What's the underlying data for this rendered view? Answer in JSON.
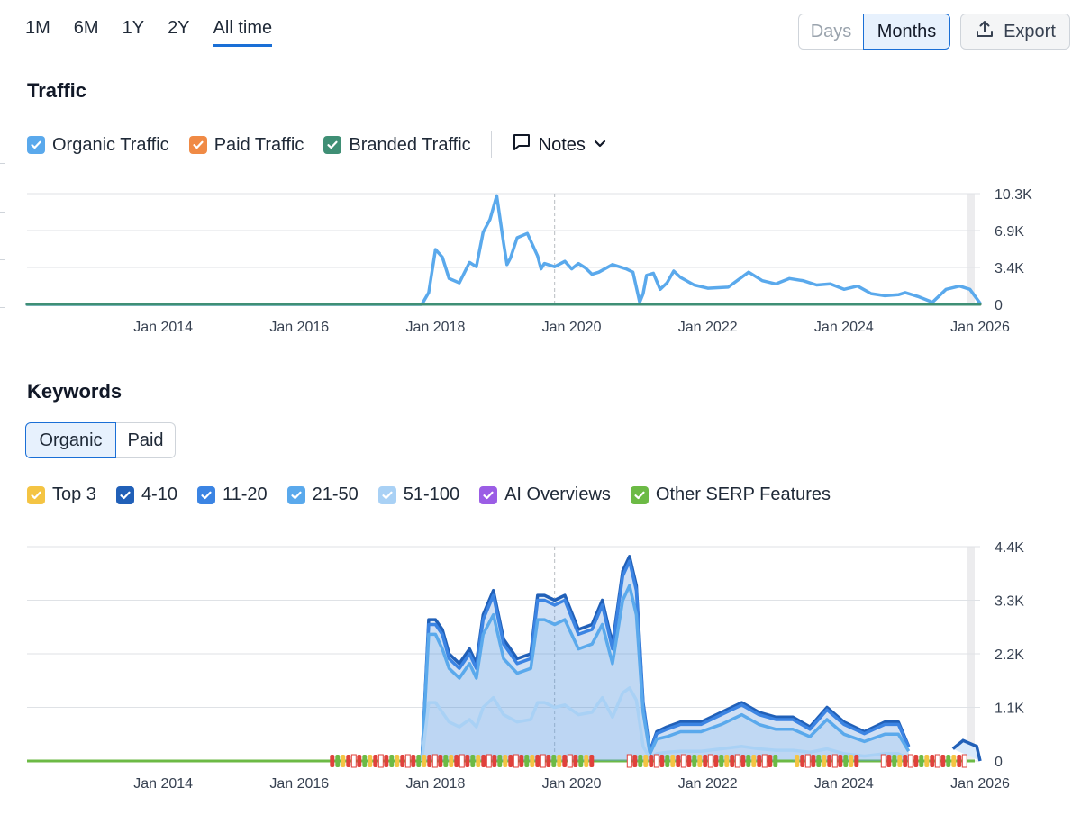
{
  "range_tabs": [
    "1M",
    "6M",
    "1Y",
    "2Y",
    "All time"
  ],
  "period": {
    "days": "Days",
    "months": "Months"
  },
  "export_label": "Export",
  "traffic": {
    "title": "Traffic",
    "legend": [
      {
        "label": "Organic Traffic",
        "color": "#5aa9ec"
      },
      {
        "label": "Paid Traffic",
        "color": "#f08a45"
      },
      {
        "label": "Branded Traffic",
        "color": "#3f8f75"
      }
    ],
    "notes_label": "Notes"
  },
  "keywords": {
    "title": "Keywords",
    "tabs": {
      "organic": "Organic",
      "paid": "Paid"
    },
    "legend": [
      {
        "label": "Top 3",
        "color": "#f4c443"
      },
      {
        "label": "4-10",
        "color": "#2160b8"
      },
      {
        "label": "11-20",
        "color": "#3b84e3"
      },
      {
        "label": "21-50",
        "color": "#5aa9ec"
      },
      {
        "label": "51-100",
        "color": "#a9d1f5"
      },
      {
        "label": "AI Overviews",
        "color": "#9b5de5"
      },
      {
        "label": "Other SERP Features",
        "color": "#6cba45"
      }
    ]
  },
  "chart_data": [
    {
      "type": "line",
      "title": "Traffic",
      "x_range": [
        2012,
        2026
      ],
      "x_tick_labels": [
        "Jan 2014",
        "Jan 2016",
        "Jan 2018",
        "Jan 2020",
        "Jan 2022",
        "Jan 2024",
        "Jan 2026"
      ],
      "x_tick_values": [
        2014,
        2016,
        2018,
        2020,
        2022,
        2024,
        2026
      ],
      "y_tick_labels": [
        "0",
        "3.4K",
        "6.9K",
        "10.3K"
      ],
      "ylim": [
        0,
        10300
      ],
      "marker_x": 2019.75,
      "series": [
        {
          "name": "Organic Traffic",
          "color": "#5aa9ec",
          "x": [
            2012.0,
            2017.8,
            2017.9,
            2018.0,
            2018.1,
            2018.2,
            2018.35,
            2018.5,
            2018.6,
            2018.7,
            2018.8,
            2018.9,
            2019.0,
            2019.05,
            2019.1,
            2019.2,
            2019.35,
            2019.5,
            2019.55,
            2019.6,
            2019.75,
            2019.9,
            2020.0,
            2020.1,
            2020.2,
            2020.3,
            2020.4,
            2020.6,
            2020.8,
            2020.9,
            2021.0,
            2021.05,
            2021.1,
            2021.2,
            2021.3,
            2021.4,
            2021.5,
            2021.6,
            2021.8,
            2022.0,
            2022.3,
            2022.6,
            2022.8,
            2023.0,
            2023.2,
            2023.4,
            2023.6,
            2023.8,
            2024.0,
            2024.2,
            2024.4,
            2024.6,
            2024.8,
            2024.9,
            2025.1,
            2025.3,
            2025.5,
            2025.7,
            2025.85,
            2026.0
          ],
          "y": [
            0,
            0,
            1100,
            5100,
            4400,
            2400,
            2000,
            3900,
            3500,
            6700,
            7900,
            10100,
            5700,
            3700,
            4300,
            6200,
            6600,
            4500,
            3300,
            3800,
            3500,
            4000,
            3300,
            3800,
            3400,
            2800,
            3000,
            3700,
            3300,
            3000,
            200,
            1000,
            2700,
            2900,
            1400,
            2000,
            3100,
            2500,
            1800,
            1500,
            1600,
            3000,
            2200,
            1900,
            2400,
            2200,
            1800,
            1900,
            1400,
            1700,
            1000,
            800,
            900,
            1100,
            700,
            200,
            1400,
            1700,
            1400,
            100
          ]
        },
        {
          "name": "Paid Traffic",
          "color": "#f08a45",
          "x": [
            2012,
            2026
          ],
          "y": [
            0,
            0
          ]
        },
        {
          "name": "Branded Traffic",
          "color": "#3f8f75",
          "x": [
            2012,
            2026
          ],
          "y": [
            0,
            0
          ]
        }
      ]
    },
    {
      "type": "area",
      "title": "Keywords",
      "x_range": [
        2012,
        2026
      ],
      "x_tick_labels": [
        "Jan 2014",
        "Jan 2016",
        "Jan 2018",
        "Jan 2020",
        "Jan 2022",
        "Jan 2024",
        "Jan 2026"
      ],
      "x_tick_values": [
        2014,
        2016,
        2018,
        2020,
        2022,
        2024,
        2026
      ],
      "y_tick_labels": [
        "0",
        "1.1K",
        "2.2K",
        "3.3K",
        "4.4K"
      ],
      "ylim": [
        0,
        4400
      ],
      "marker_x": 2019.75,
      "x": [
        2017.8,
        2017.9,
        2018.0,
        2018.1,
        2018.2,
        2018.35,
        2018.5,
        2018.6,
        2018.7,
        2018.85,
        2019.0,
        2019.2,
        2019.4,
        2019.5,
        2019.6,
        2019.75,
        2019.9,
        2020.1,
        2020.3,
        2020.45,
        2020.6,
        2020.75,
        2020.85,
        2020.95,
        2021.05,
        2021.15,
        2021.25,
        2021.4,
        2021.6,
        2021.9,
        2022.2,
        2022.5,
        2022.75,
        2023.0,
        2023.25,
        2023.5,
        2023.75,
        2024.0,
        2024.3,
        2024.6,
        2024.8,
        2024.95
      ],
      "series": [
        {
          "name": "4-10",
          "color": "#2160b8",
          "values": [
            0,
            2900,
            2900,
            2700,
            2200,
            2000,
            2300,
            2000,
            3000,
            3500,
            2500,
            2100,
            2200,
            3400,
            3400,
            3300,
            3400,
            2700,
            2800,
            3300,
            2400,
            3900,
            4200,
            3600,
            1200,
            200,
            600,
            700,
            800,
            800,
            1000,
            1200,
            1000,
            900,
            900,
            700,
            1100,
            800,
            600,
            800,
            800,
            300
          ]
        },
        {
          "name": "11-20",
          "color": "#3b84e3",
          "values": [
            0,
            2800,
            2800,
            2600,
            2100,
            1900,
            2200,
            1900,
            2900,
            3400,
            2400,
            2000,
            2100,
            3300,
            3300,
            3200,
            3300,
            2600,
            2700,
            3200,
            2300,
            3800,
            4100,
            3500,
            1150,
            180,
            560,
            650,
            750,
            750,
            950,
            1150,
            950,
            850,
            850,
            650,
            1050,
            750,
            560,
            750,
            750,
            280
          ]
        },
        {
          "name": "21-50",
          "color": "#5aa9ec",
          "values": [
            0,
            2600,
            2600,
            2300,
            1900,
            1700,
            2000,
            1700,
            2600,
            3000,
            2100,
            1800,
            1900,
            2900,
            2900,
            2800,
            2900,
            2300,
            2400,
            2800,
            2000,
            3300,
            3600,
            3000,
            1000,
            150,
            450,
            500,
            600,
            600,
            750,
            950,
            750,
            650,
            650,
            500,
            850,
            550,
            400,
            550,
            550,
            200
          ]
        },
        {
          "name": "51-100",
          "color": "#a9d1f5",
          "values": [
            0,
            1200,
            1200,
            1000,
            800,
            700,
            850,
            700,
            1100,
            1300,
            950,
            800,
            850,
            1200,
            1200,
            1100,
            1150,
            950,
            1000,
            1300,
            900,
            1400,
            1500,
            1250,
            300,
            50,
            150,
            180,
            200,
            200,
            250,
            300,
            250,
            220,
            220,
            180,
            250,
            150,
            100,
            150,
            150,
            50
          ]
        }
      ],
      "tail": {
        "x": [
          2025.6,
          2025.75,
          2025.95,
          2026.0
        ],
        "values": [
          250,
          420,
          300,
          0
        ]
      }
    }
  ]
}
